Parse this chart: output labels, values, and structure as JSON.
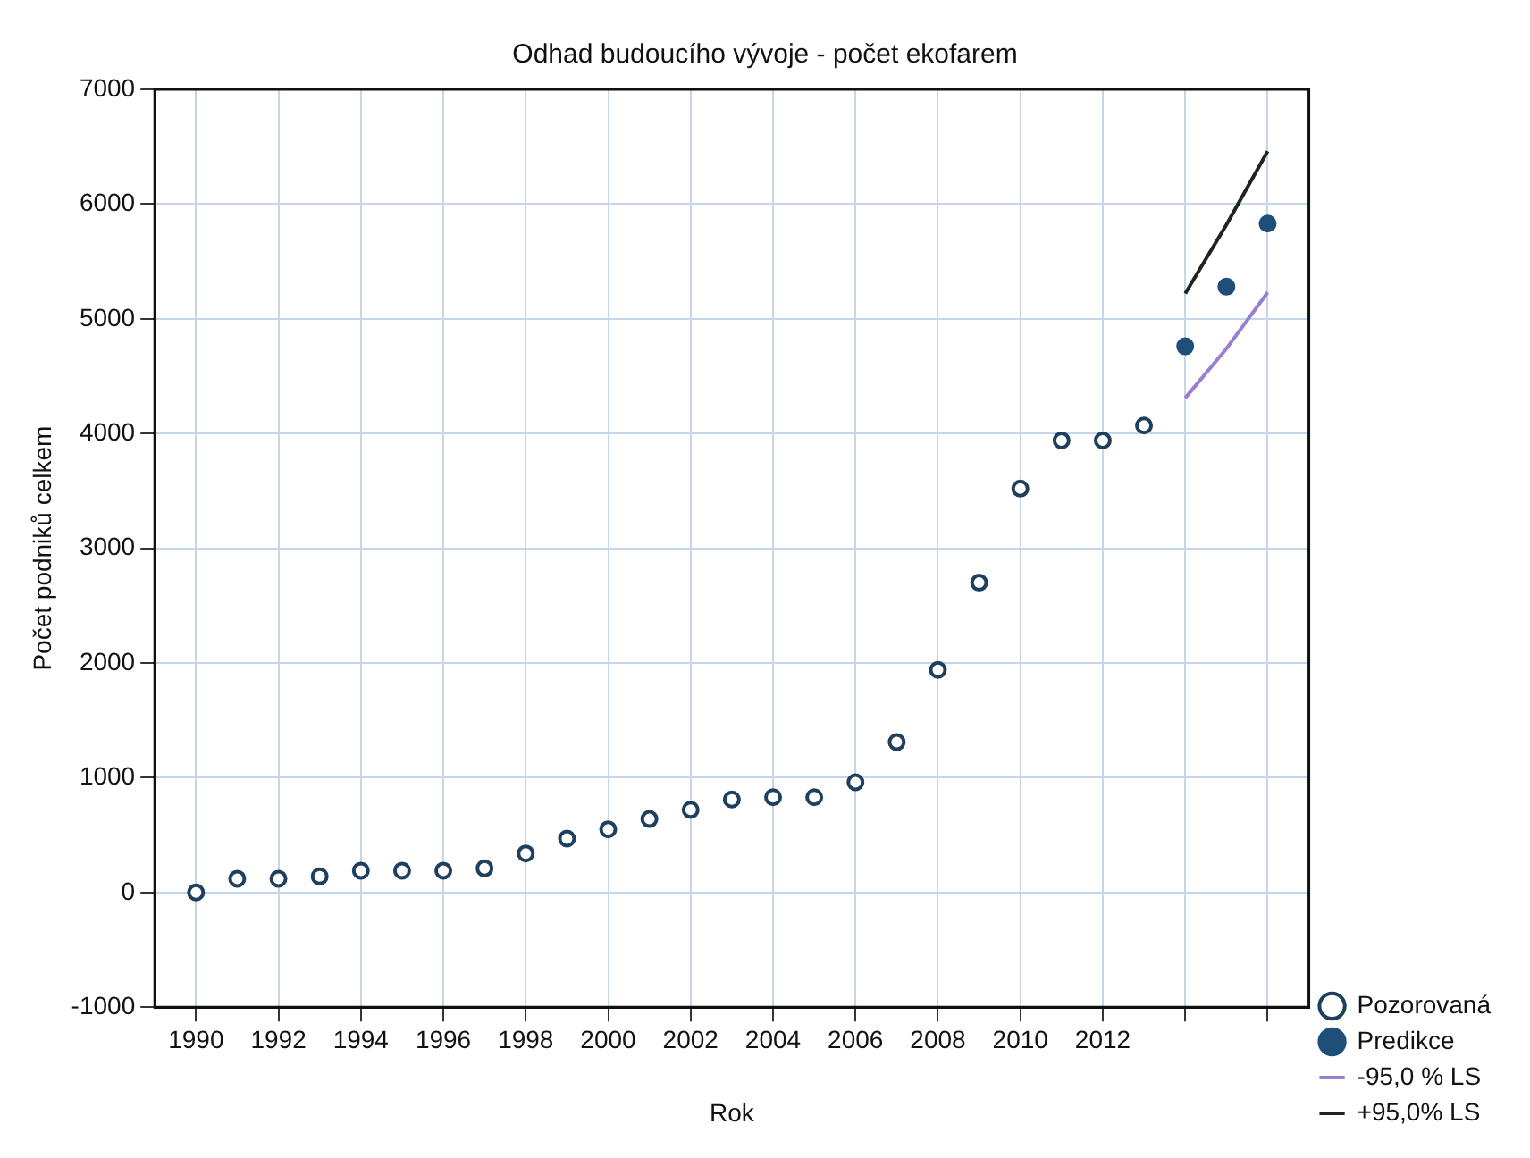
{
  "chart_data": {
    "type": "scatter",
    "title": "Odhad budoucího vývoje - počet ekofarem",
    "xlabel": "Rok",
    "ylabel": "Počet podniků celkem",
    "xlim": [
      1989,
      2017
    ],
    "xticks": [
      1990,
      1992,
      1994,
      1996,
      1998,
      2000,
      2002,
      2004,
      2006,
      2008,
      2010,
      2012,
      {
        "value": 2014,
        "label": null
      },
      {
        "value": 2016,
        "label": null
      }
    ],
    "ylim": [
      -1000,
      7000
    ],
    "yticks": [
      -1000,
      0,
      1000,
      2000,
      3000,
      4000,
      5000,
      6000,
      7000
    ],
    "grid": true,
    "legend": "bottom right",
    "marker": "circle",
    "series": [
      {
        "name": "Pozorovaná",
        "color": "#1f3f5f",
        "x": [
          1990,
          1991,
          1992,
          1993,
          1994,
          1995,
          1996,
          1997,
          1998,
          1999,
          2000,
          2001,
          2002,
          2003,
          2004,
          2005,
          2006,
          2007,
          2008,
          2009,
          2010,
          2011,
          2012,
          2013
        ],
        "values": [
          0,
          120,
          120,
          140,
          190,
          190,
          190,
          210,
          340,
          470,
          550,
          640,
          720,
          810,
          830,
          830,
          960,
          1310,
          1940,
          2700,
          3520,
          3940,
          3940,
          4070
        ]
      },
      {
        "name": "Predikce",
        "color": "#1f4e79",
        "x": [
          2014,
          2015,
          2016
        ],
        "values": [
          4760,
          5280,
          5830
        ]
      },
      {
        "name": "-95,0 % LS",
        "type": "line",
        "marker": "none",
        "color": "#9a7fd0",
        "x": [
          2014,
          2015,
          2016
        ],
        "values": [
          4310,
          4740,
          5230
        ]
      },
      {
        "name": "+95,0% LS",
        "type": "line",
        "marker": "none",
        "color": "#222222",
        "x": [
          2014,
          2015,
          2016
        ],
        "values": [
          5220,
          5820,
          6460
        ]
      }
    ]
  }
}
